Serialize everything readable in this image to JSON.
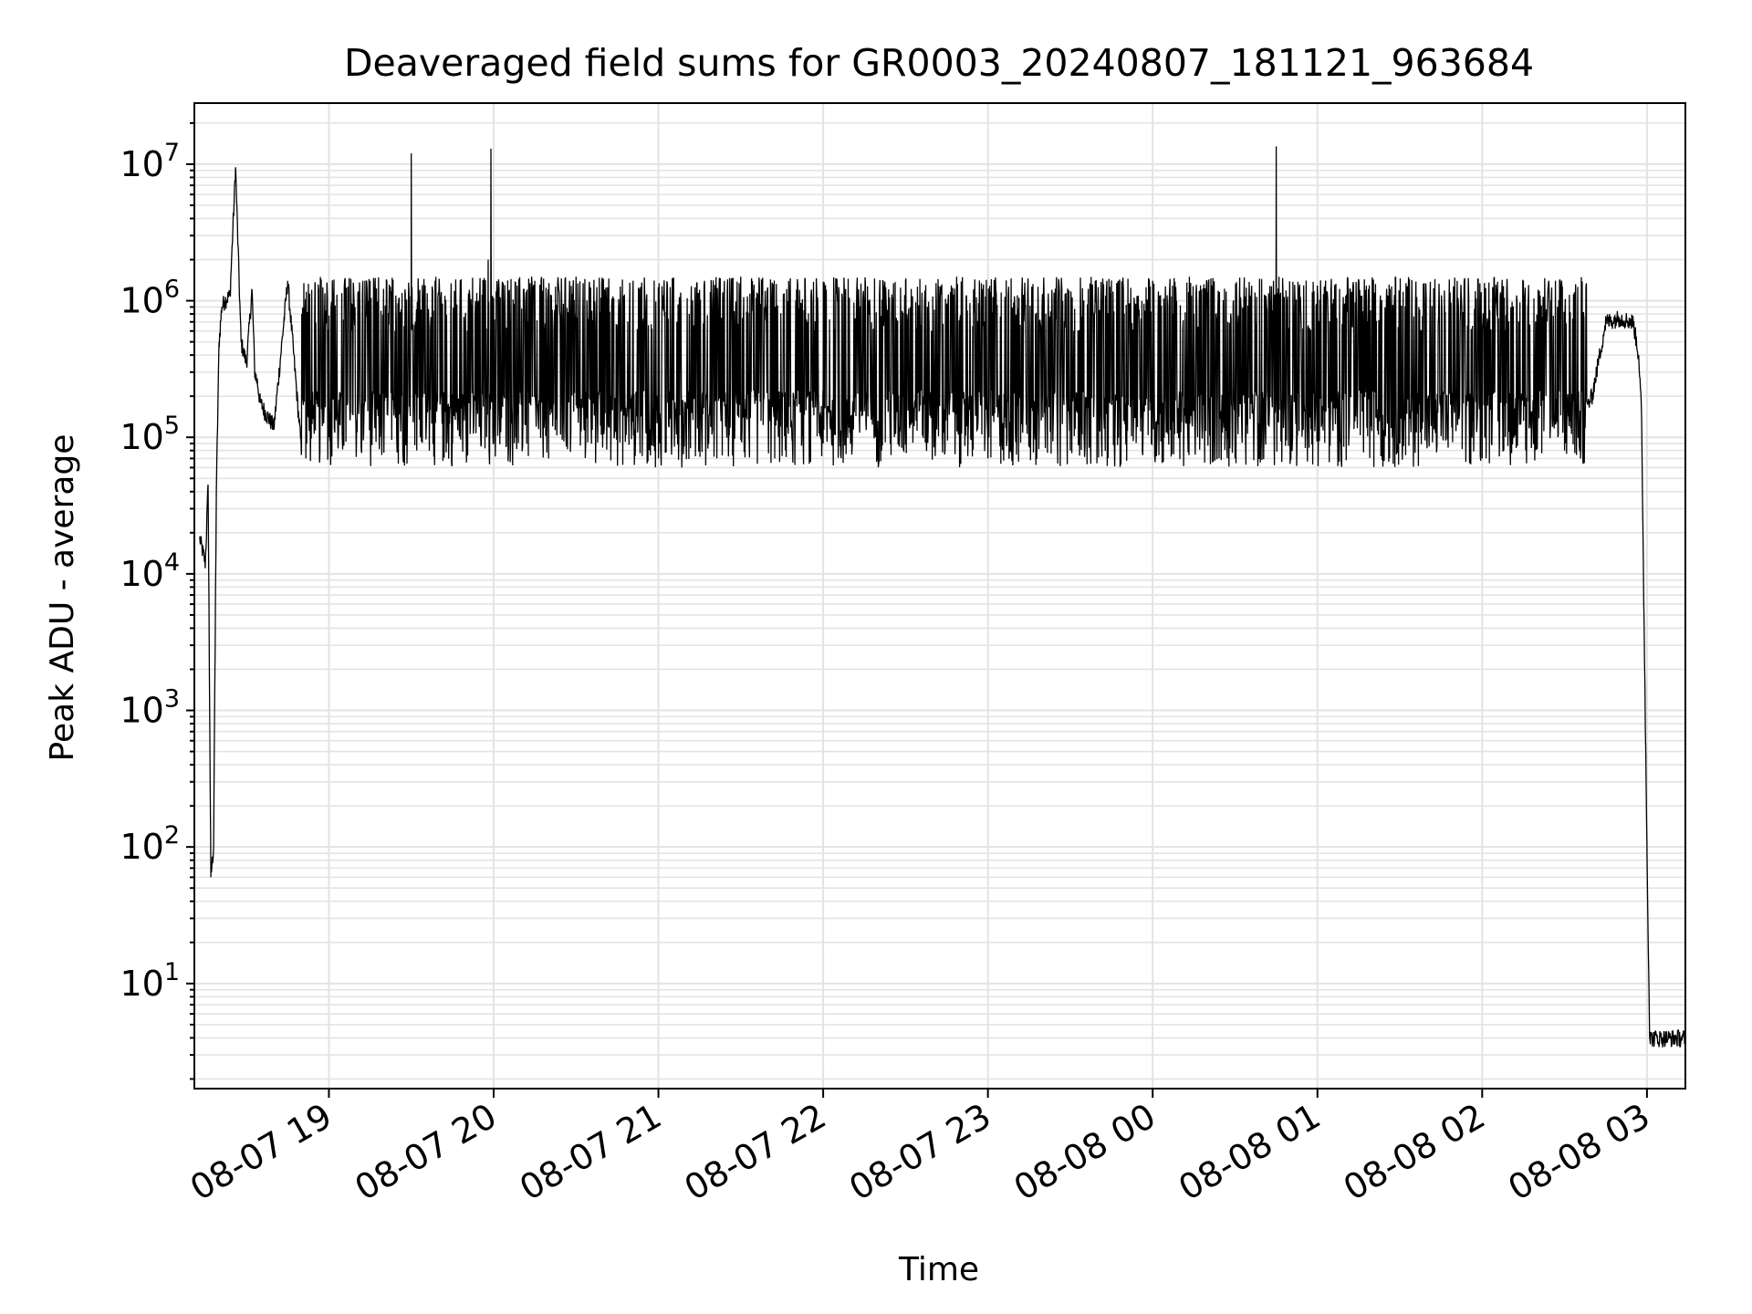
{
  "chart_data": {
    "type": "line",
    "title": "Deaveraged field sums for GR0003_20240807_181121_963684",
    "xlabel": "Time",
    "ylabel": "Peak ADU - average",
    "yscale": "log",
    "ylim": [
      1.7,
      28000000
    ],
    "xlim": [
      "2024-08-07 18:11",
      "2024-08-08 03:14"
    ],
    "grid": true,
    "x_ticks": [
      "08-07 19",
      "08-07 20",
      "08-07 21",
      "08-07 22",
      "08-07 23",
      "08-08 00",
      "08-08 01",
      "08-08 02",
      "08-08 03"
    ],
    "y_ticks": [
      {
        "base": "10",
        "exp": "1",
        "value": 10
      },
      {
        "base": "10",
        "exp": "2",
        "value": 100
      },
      {
        "base": "10",
        "exp": "3",
        "value": 1000
      },
      {
        "base": "10",
        "exp": "4",
        "value": 10000
      },
      {
        "base": "10",
        "exp": "5",
        "value": 100000
      },
      {
        "base": "10",
        "exp": "6",
        "value": 1000000
      },
      {
        "base": "10",
        "exp": "7",
        "value": 10000000
      }
    ],
    "line_color": "#000000",
    "grid_color": "#e3e3e3",
    "series": [
      {
        "x": [
          "2024-08-07 18:13",
          "2024-08-07 18:15",
          "2024-08-07 18:16",
          "2024-08-07 18:17",
          "2024-08-07 18:18",
          "2024-08-07 18:19",
          "2024-08-07 18:20",
          "2024-08-07 18:21",
          "2024-08-07 18:22",
          "2024-08-07 18:24",
          "2024-08-07 18:26",
          "2024-08-07 18:28",
          "2024-08-07 18:30",
          "2024-08-07 18:32",
          "2024-08-07 18:33",
          "2024-08-07 18:34",
          "2024-08-07 18:35",
          "2024-08-07 18:37",
          "2024-08-07 18:40",
          "2024-08-07 18:45",
          "2024-08-07 18:50",
          "2024-08-07 18:55",
          "2024-08-07 19:00",
          "2024-08-07 19:15",
          "2024-08-07 19:30",
          "2024-08-07 19:32",
          "2024-08-07 19:34",
          "2024-08-07 19:45",
          "2024-08-07 19:58",
          "2024-08-07 19:59",
          "2024-08-07 20:00",
          "2024-08-07 20:15",
          "2024-08-07 20:20",
          "2024-08-07 20:30",
          "2024-08-07 21:00",
          "2024-08-07 21:30",
          "2024-08-07 22:00",
          "2024-08-07 22:30",
          "2024-08-07 23:00",
          "2024-08-07 23:30",
          "2024-08-08 00:00",
          "2024-08-08 00:30",
          "2024-08-08 00:44",
          "2024-08-08 00:45",
          "2024-08-08 00:46",
          "2024-08-08 01:00",
          "2024-08-08 01:30",
          "2024-08-08 02:00",
          "2024-08-08 02:15",
          "2024-08-08 02:30",
          "2024-08-08 02:40",
          "2024-08-08 02:45",
          "2024-08-08 02:50",
          "2024-08-08 02:55",
          "2024-08-08 02:57",
          "2024-08-08 02:58",
          "2024-08-08 03:00",
          "2024-08-08 03:01",
          "2024-08-08 03:14"
        ],
        "y": [
          18000,
          12000,
          45000,
          60,
          100,
          40000,
          500000,
          900000,
          1000000,
          1100000,
          9500000,
          500000,
          350000,
          1200000,
          300000,
          250000,
          180000,
          150000,
          120000,
          1400000,
          80000,
          1300000,
          100000,
          1400000,
          12000000,
          80000,
          1300000,
          90000,
          2000000,
          13000000,
          90000,
          1400000,
          70000,
          1500000,
          70000,
          1500000,
          90000,
          1400000,
          70000,
          80000,
          1400000,
          70000,
          1400000,
          13500000,
          1500000,
          1200000,
          90000,
          70000,
          1400000,
          80000,
          200000,
          700000,
          750000,
          700000,
          400000,
          150000,
          100,
          4,
          4
        ]
      }
    ]
  }
}
